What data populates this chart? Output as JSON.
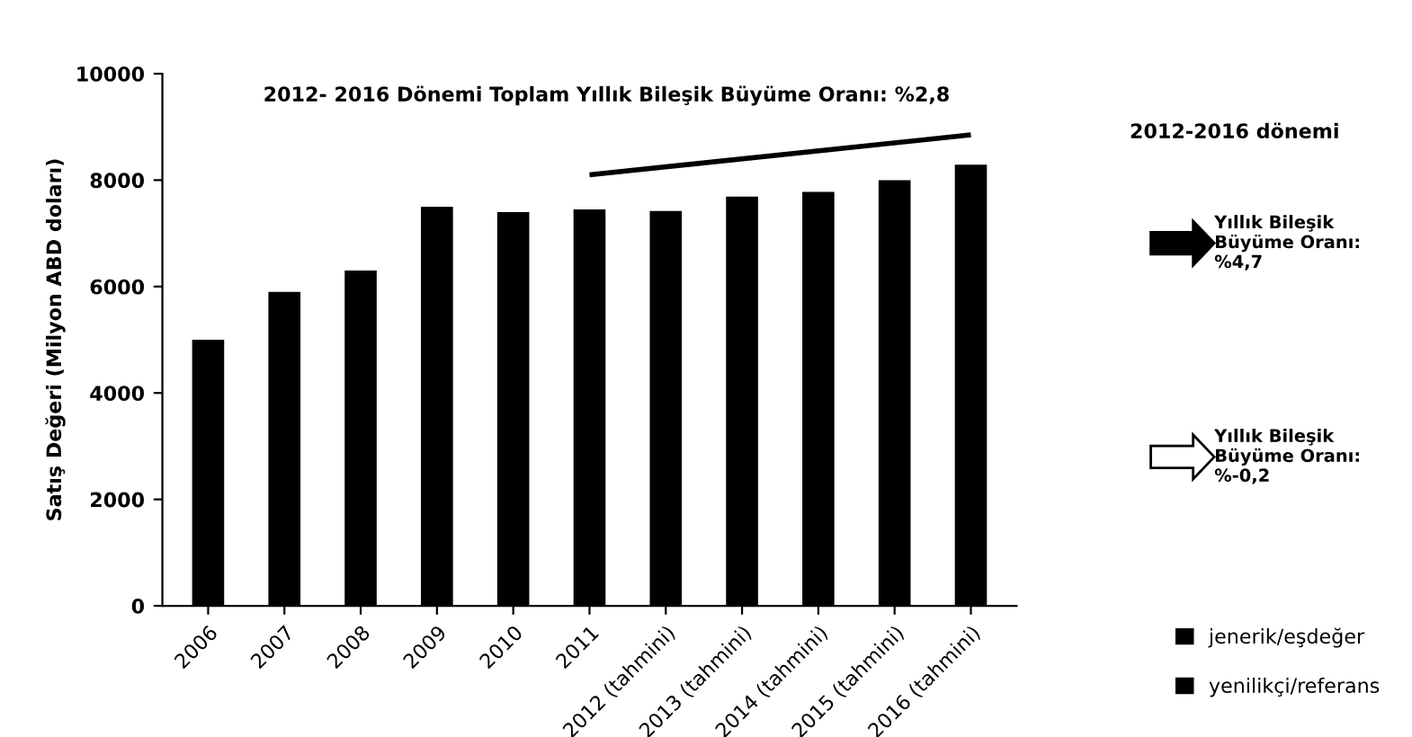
{
  "chart_data": {
    "type": "bar",
    "title": "2012- 2016 Dönemi Toplam Yıllık Bileşik Büyüme Oranı: %2,8",
    "ylabel": "Satış Değeri (Milyon ABD doları)",
    "categories": [
      "2006",
      "2007",
      "2008",
      "2009",
      "2010",
      "2011",
      "2012 (tahmini)",
      "2013 (tahmini)",
      "2014 (tahmini)",
      "2015 (tahmini)",
      "2016 (tahmini)"
    ],
    "series": [
      {
        "name": "jenerik/eşdeğer",
        "color": "#000000",
        "values": [
          5000,
          5900,
          6300,
          7500,
          7400,
          7450,
          7420,
          7690,
          7780,
          8000,
          8290
        ]
      },
      {
        "name": "yenilikçi/referans",
        "color": "#000000",
        "values": [
          null,
          null,
          null,
          null,
          null,
          null,
          null,
          null,
          null,
          null,
          null
        ]
      },
      {
        "type": "line",
        "color": "#000000",
        "values": [
          null,
          null,
          null,
          null,
          null,
          8100,
          null,
          null,
          null,
          null,
          8850
        ]
      }
    ],
    "ylim": [
      0,
      10000
    ],
    "yticks": [
      0,
      2000,
      4000,
      6000,
      8000,
      10000
    ],
    "grid": false,
    "legend": "bottom right",
    "annotations": [
      "2012-2016 dönemi",
      "Yıllık Bileşik Büyüme Oranı: %4,7",
      "Yıllık Bileşik Büyüme Oranı: %-0,2"
    ]
  }
}
